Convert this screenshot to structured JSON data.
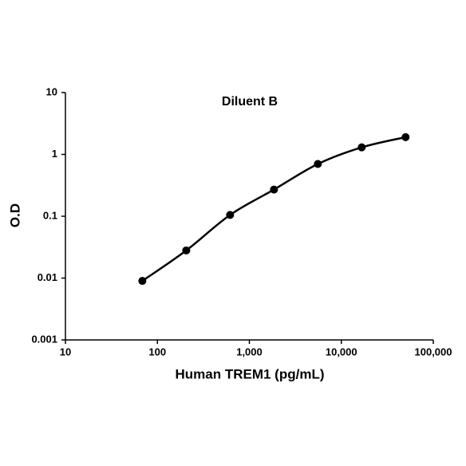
{
  "chart_data": {
    "type": "line",
    "title": "Diluent B",
    "x_label": "Human TREM1 (pg/mL)",
    "y_label": "O.D",
    "x": [
      68.6,
      206,
      617,
      1852,
      5556,
      16667,
      50000
    ],
    "series": [
      {
        "name": "Diluent B",
        "color": "#000000",
        "values": [
          0.009,
          0.028,
          0.105,
          0.27,
          0.7,
          1.3,
          1.9
        ]
      }
    ],
    "xscale": "log",
    "yscale": "log",
    "xlim": [
      10,
      100000
    ],
    "ylim": [
      0.001,
      10
    ],
    "xticks": [
      10,
      100,
      {
        "value": 1000,
        "label": "1,000"
      },
      {
        "value": 10000,
        "label": "10,000"
      },
      {
        "value": 100000,
        "label": "100,000"
      }
    ],
    "yticks": [
      0.001,
      0.01,
      0.1,
      1,
      10
    ],
    "grid": false
  }
}
